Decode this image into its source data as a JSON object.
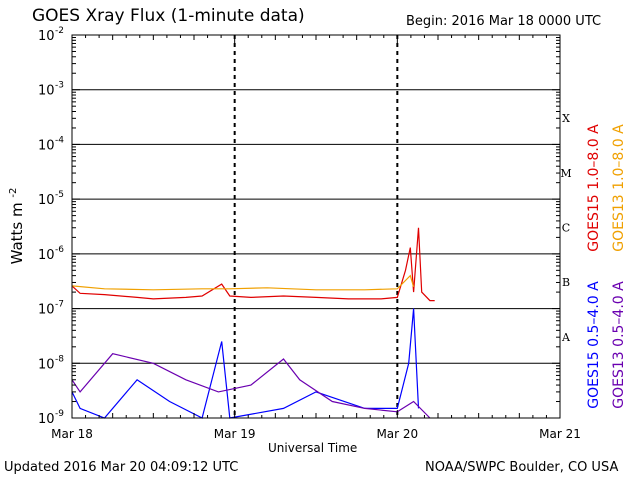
{
  "header": {
    "title": "GOES Xray Flux (1-minute data)",
    "begin": "Begin:  2016 Mar 18 0000 UTC"
  },
  "footer": {
    "updated": "Updated 2016 Mar 20 04:09:12 UTC",
    "credit": "NOAA/SWPC Boulder, CO USA"
  },
  "chart_data": {
    "type": "line",
    "title": "GOES Xray Flux (1-minute data)",
    "xlabel": "Universal Time",
    "ylabel": "Watts m-2",
    "ylabel_base": "Watts m",
    "ylabel_exp": "-2",
    "y_scale": "log",
    "ylim": [
      1e-09,
      0.01
    ],
    "xlim_days": [
      0,
      3
    ],
    "x_ticks": [
      "Mar 18",
      "Mar 19",
      "Mar 20",
      "Mar 21"
    ],
    "y_ticks": [
      {
        "base": "10",
        "exp": "-2"
      },
      {
        "base": "10",
        "exp": "-3"
      },
      {
        "base": "10",
        "exp": "-4"
      },
      {
        "base": "10",
        "exp": "-5"
      },
      {
        "base": "10",
        "exp": "-6"
      },
      {
        "base": "10",
        "exp": "-7"
      },
      {
        "base": "10",
        "exp": "-8"
      },
      {
        "base": "10",
        "exp": "-9"
      }
    ],
    "flare_classes": [
      "X",
      "M",
      "C",
      "B",
      "A"
    ],
    "grid": true,
    "colors": {
      "goes15_long": "#e00000",
      "goes13_long": "#f0a000",
      "goes15_short": "#0000ff",
      "goes13_short": "#6a00b0"
    },
    "legend": [
      {
        "label": "GOES15 1.0–8.0 A",
        "color": "#e00000"
      },
      {
        "label": "GOES13 1.0–8.0 A",
        "color": "#f0a000"
      },
      {
        "label": "GOES15 0.5–4.0 A",
        "color": "#0000ff"
      },
      {
        "label": "GOES13 0.5–4.0 A",
        "color": "#6a00b0"
      }
    ],
    "series": [
      {
        "name": "GOES15 1.0–8.0 A",
        "points": [
          [
            0,
            2.6e-07
          ],
          [
            0.05,
            1.9e-07
          ],
          [
            0.2,
            1.8e-07
          ],
          [
            0.4,
            1.6e-07
          ],
          [
            0.5,
            1.5e-07
          ],
          [
            0.7,
            1.6e-07
          ],
          [
            0.8,
            1.7e-07
          ],
          [
            0.92,
            2.8e-07
          ],
          [
            0.97,
            1.7e-07
          ],
          [
            1.1,
            1.6e-07
          ],
          [
            1.3,
            1.7e-07
          ],
          [
            1.5,
            1.6e-07
          ],
          [
            1.7,
            1.5e-07
          ],
          [
            1.9,
            1.5e-07
          ],
          [
            2.0,
            1.6e-07
          ],
          [
            2.05,
            5e-07
          ],
          [
            2.08,
            1.3e-06
          ],
          [
            2.1,
            2e-07
          ],
          [
            2.13,
            3e-06
          ],
          [
            2.15,
            2e-07
          ],
          [
            2.2,
            1.4e-07
          ],
          [
            2.23,
            1.4e-07
          ]
        ]
      },
      {
        "name": "GOES13 1.0–8.0 A",
        "points": [
          [
            0,
            2.6e-07
          ],
          [
            0.2,
            2.3e-07
          ],
          [
            0.5,
            2.2e-07
          ],
          [
            0.8,
            2.3e-07
          ],
          [
            0.97,
            2.3e-07
          ],
          [
            1.2,
            2.4e-07
          ],
          [
            1.5,
            2.2e-07
          ],
          [
            1.8,
            2.2e-07
          ],
          [
            2.0,
            2.3e-07
          ],
          [
            2.08,
            4e-07
          ],
          [
            2.1,
            2.5e-07
          ]
        ]
      },
      {
        "name": "GOES15 0.5–4.0 A",
        "points": [
          [
            0,
            3e-09
          ],
          [
            0.05,
            1.5e-09
          ],
          [
            0.2,
            1e-09
          ],
          [
            0.4,
            5e-09
          ],
          [
            0.6,
            2e-09
          ],
          [
            0.8,
            1e-09
          ],
          [
            0.92,
            2.5e-08
          ],
          [
            0.97,
            1e-09
          ],
          [
            1.3,
            1.5e-09
          ],
          [
            1.5,
            3e-09
          ],
          [
            1.8,
            1.5e-09
          ],
          [
            2.0,
            1.5e-09
          ],
          [
            2.07,
            1e-08
          ],
          [
            2.1,
            1e-07
          ],
          [
            2.13,
            1.5e-09
          ]
        ]
      },
      {
        "name": "GOES13 0.5–4.0 A",
        "points": [
          [
            0,
            5e-09
          ],
          [
            0.05,
            3e-09
          ],
          [
            0.25,
            1.5e-08
          ],
          [
            0.5,
            1e-08
          ],
          [
            0.7,
            5e-09
          ],
          [
            0.9,
            3e-09
          ],
          [
            1.1,
            4e-09
          ],
          [
            1.3,
            1.2e-08
          ],
          [
            1.4,
            5e-09
          ],
          [
            1.6,
            2e-09
          ],
          [
            1.8,
            1.5e-09
          ],
          [
            2.0,
            1.3e-09
          ],
          [
            2.1,
            2e-09
          ],
          [
            2.2,
            1e-09
          ]
        ]
      }
    ]
  }
}
